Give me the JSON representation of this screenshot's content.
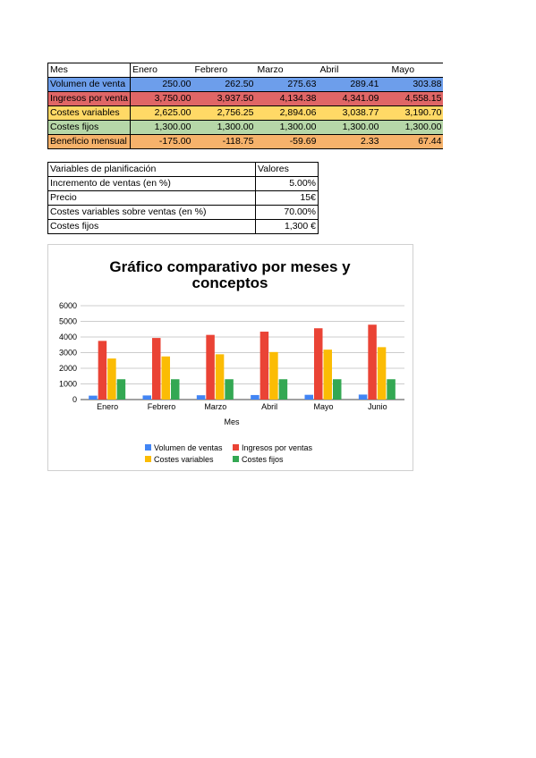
{
  "main_table": {
    "header": [
      "Mes",
      "Enero",
      "Febrero",
      "Marzo",
      "Abril",
      "Mayo"
    ],
    "rows": [
      {
        "label": "Volumen de venta",
        "values": [
          "250.00",
          "262.50",
          "275.63",
          "289.41",
          "303.88"
        ],
        "color": "#6d9eeb"
      },
      {
        "label": "Ingresos por venta",
        "values": [
          "3,750.00",
          "3,937.50",
          "4,134.38",
          "4,341.09",
          "4,558.15"
        ],
        "color": "#e06666"
      },
      {
        "label": "Costes variables",
        "values": [
          "2,625.00",
          "2,756.25",
          "2,894.06",
          "3,038.77",
          "3,190.70"
        ],
        "color": "#ffd966"
      },
      {
        "label": "Costes fijos",
        "values": [
          "1,300.00",
          "1,300.00",
          "1,300.00",
          "1,300.00",
          "1,300.00"
        ],
        "color": "#b6d7a8"
      },
      {
        "label": "Beneficio mensual",
        "values": [
          "-175.00",
          "-118.75",
          "-59.69",
          "2.33",
          "67.44"
        ],
        "color": "#f6b26b"
      }
    ]
  },
  "plan_table": {
    "header": [
      "Variables de planificación",
      "Valores"
    ],
    "rows": [
      {
        "label": "Incremento de ventas (en %)",
        "value": "5.00%"
      },
      {
        "label": "Precio",
        "value": "15€"
      },
      {
        "label": "Costes variables sobre ventas (en %)",
        "value": "70.00%"
      },
      {
        "label": "Costes fijos",
        "value": "1,300 €"
      }
    ]
  },
  "chart_data": {
    "type": "bar",
    "title": "Gráfico comparativo por meses y conceptos",
    "xlabel": "Mes",
    "ylabel": "",
    "ylim": [
      0,
      6000
    ],
    "yticks": [
      0,
      1000,
      2000,
      3000,
      4000,
      5000,
      6000
    ],
    "grid": true,
    "legend_position": "bottom",
    "categories": [
      "Enero",
      "Febrero",
      "Marzo",
      "Abril",
      "Mayo",
      "Junio"
    ],
    "series": [
      {
        "name": "Volumen de ventas",
        "color": "#4285f4",
        "values": [
          250,
          262.5,
          275.63,
          289.41,
          303.88,
          319.08
        ]
      },
      {
        "name": "Ingresos por ventas",
        "color": "#ea4335",
        "values": [
          3750,
          3937.5,
          4134.38,
          4341.09,
          4558.15,
          4786.06
        ]
      },
      {
        "name": "Costes variables",
        "color": "#fbbc04",
        "values": [
          2625,
          2756.25,
          2894.06,
          3038.77,
          3190.7,
          3350.24
        ]
      },
      {
        "name": "Costes fijos",
        "color": "#34a853",
        "values": [
          1300,
          1300,
          1300,
          1300,
          1300,
          1300
        ]
      }
    ]
  }
}
